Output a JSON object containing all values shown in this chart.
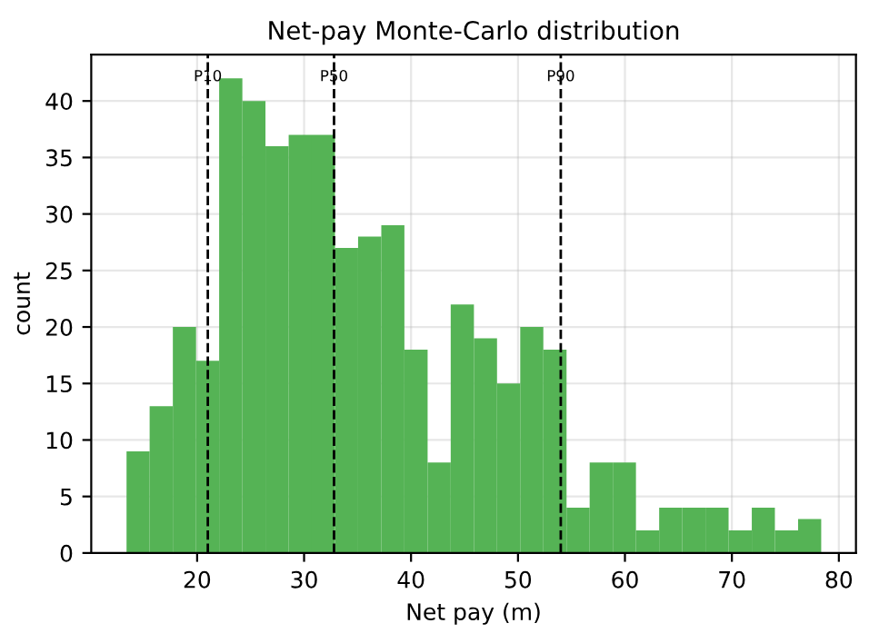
{
  "chart_data": {
    "type": "histogram",
    "title": "Net-pay Monte-Carlo distribution",
    "xlabel": "Net pay (m)",
    "ylabel": "count",
    "bins": [
      13.4,
      15.56,
      17.73,
      19.9,
      22.06,
      24.23,
      26.39,
      28.56,
      30.72,
      32.89,
      35.05,
      37.22,
      39.38,
      41.55,
      43.71,
      45.88,
      48.04,
      50.21,
      52.37,
      54.54,
      56.7,
      58.87,
      61.03,
      63.2,
      65.36,
      67.53,
      69.69,
      71.86,
      74.02,
      76.19,
      78.35
    ],
    "values": [
      9,
      13,
      20,
      17,
      42,
      40,
      36,
      37,
      37,
      27,
      28,
      29,
      18,
      8,
      22,
      19,
      15,
      20,
      18,
      4,
      8,
      8,
      2,
      4,
      4,
      4,
      2,
      4,
      2,
      3
    ],
    "color": "#55b355",
    "xlim": [
      10.1,
      81.6
    ],
    "ylim": [
      0,
      44.1
    ],
    "xticks": [
      20,
      30,
      40,
      50,
      60,
      70,
      80
    ],
    "yticks": [
      0,
      5,
      10,
      15,
      20,
      25,
      30,
      35,
      40
    ],
    "ref_lines": [
      {
        "axis": "x",
        "value": 21,
        "label": "P10",
        "color": "#000000",
        "line_style": "dashed"
      },
      {
        "axis": "x",
        "value": 32.8,
        "label": "P50",
        "color": "#000000",
        "line_style": "dashed"
      },
      {
        "axis": "x",
        "value": 54,
        "label": "P90",
        "color": "#000000",
        "line_style": "dashed"
      }
    ],
    "grid": true
  }
}
